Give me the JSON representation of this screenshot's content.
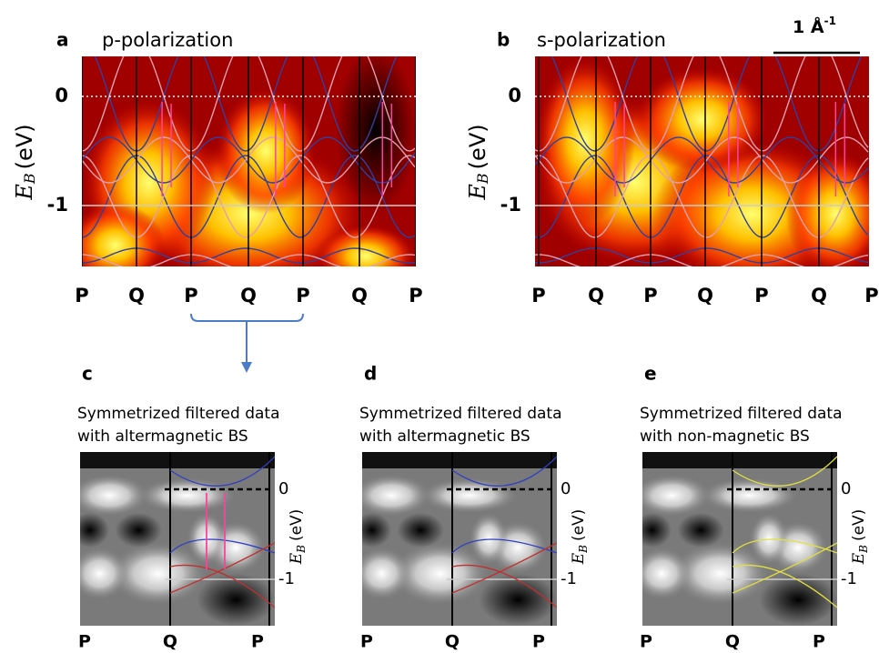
{
  "scale_bar": {
    "text": "1 Å",
    "sup": "-1"
  },
  "panels": [
    {
      "label": "a",
      "title": "p-polarization",
      "y_ticks": [
        "0",
        "-1"
      ],
      "y_axis": {
        "symbol": "E",
        "sub": "B",
        "unit": "(eV)"
      },
      "x_ticks": [
        "P",
        "Q",
        "P",
        "Q",
        "P",
        "Q",
        "P"
      ]
    },
    {
      "label": "b",
      "title": "s-polarization",
      "y_ticks": [
        "0",
        "-1"
      ],
      "y_axis": {
        "symbol": "E",
        "sub": "B",
        "unit": "(eV)"
      },
      "x_ticks": [
        "P",
        "Q",
        "P",
        "Q",
        "P",
        "Q",
        "P"
      ]
    },
    {
      "label": "c",
      "title_lines": [
        "Symmetrized filtered data",
        "with altermagnetic BS"
      ],
      "y_ticks": [
        "0",
        "-1"
      ],
      "y_axis": {
        "symbol": "E",
        "sub": "B",
        "unit": "(eV)"
      },
      "x_ticks": [
        "P",
        "Q",
        "P"
      ]
    },
    {
      "label": "d",
      "title_lines": [
        "Symmetrized filtered data",
        "with altermagnetic BS"
      ],
      "y_ticks": [
        "0",
        "-1"
      ],
      "y_axis": {
        "symbol": "E",
        "sub": "B",
        "unit": "(eV)"
      },
      "x_ticks": [
        "P",
        "Q",
        "P"
      ]
    },
    {
      "label": "e",
      "title_lines": [
        "Symmetrized filtered data",
        "with non-magnetic BS"
      ],
      "y_ticks": [
        "0",
        "-1"
      ],
      "y_axis": {
        "symbol": "E",
        "sub": "B",
        "unit": "(eV)"
      },
      "x_ticks": [
        "P",
        "Q",
        "P"
      ]
    }
  ]
}
